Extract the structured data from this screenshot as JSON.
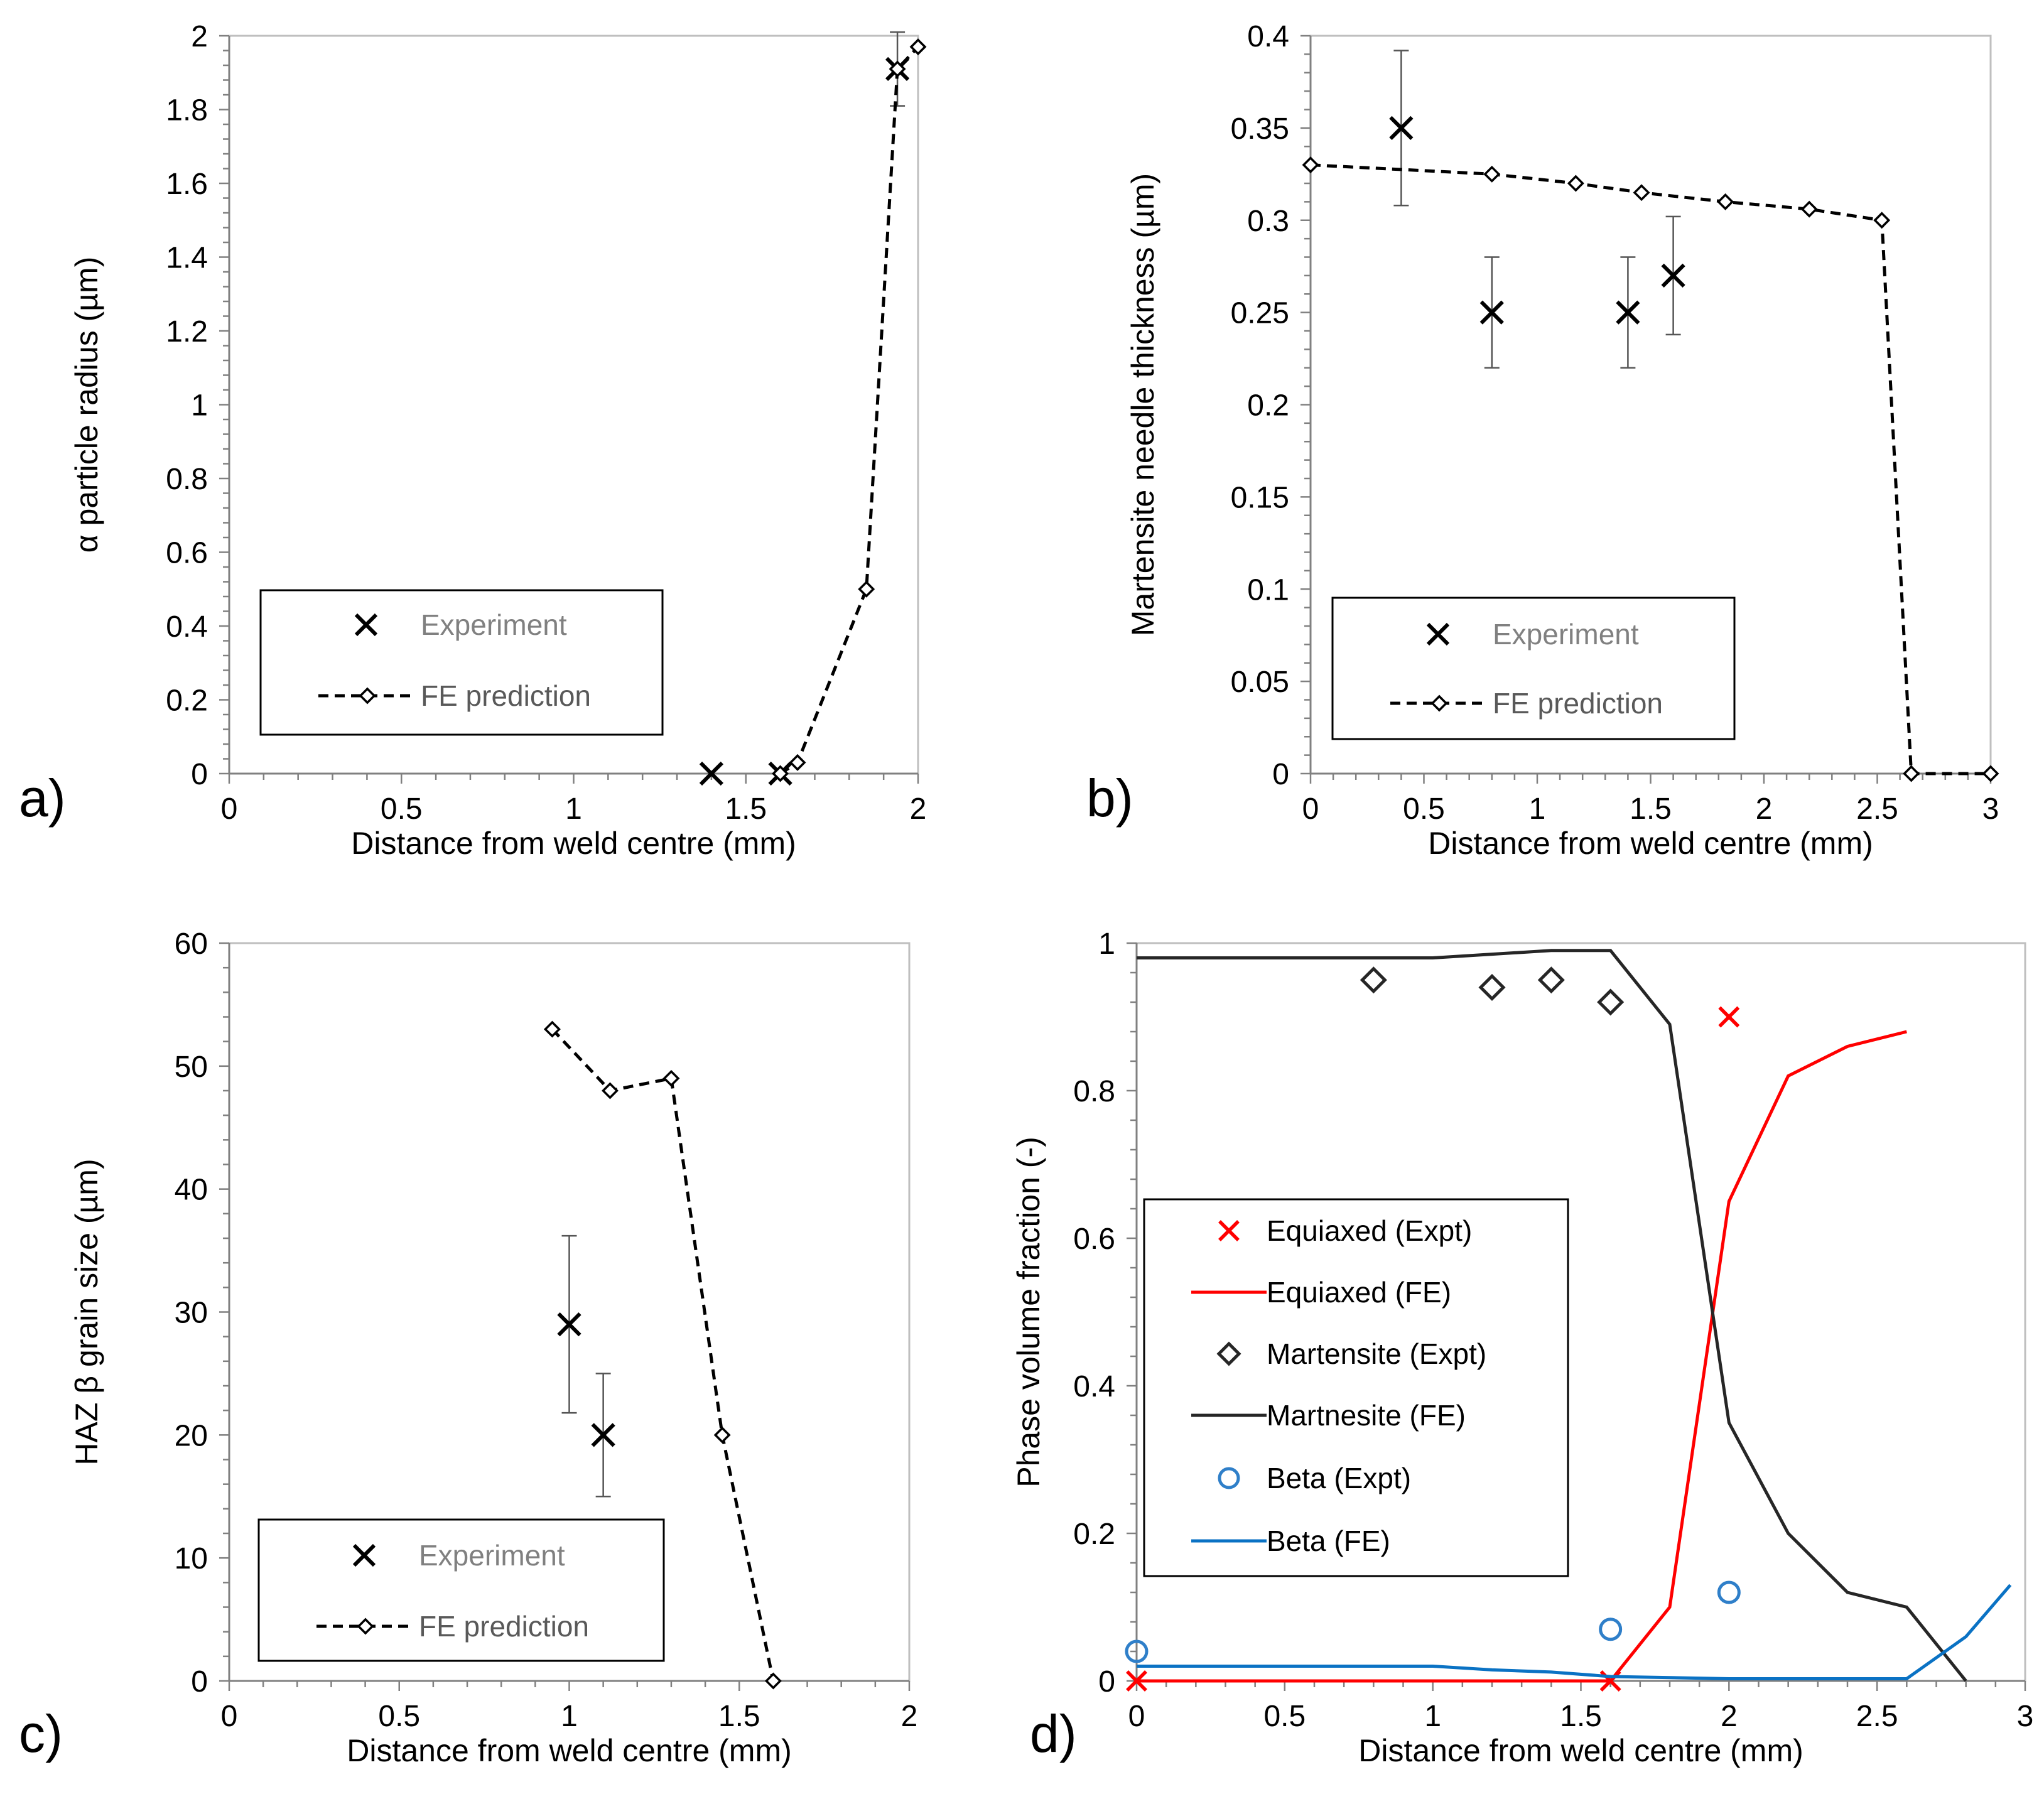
{
  "chart_data": [
    {
      "id": "a",
      "panel_label": "a)",
      "type": "scatter",
      "xlabel": "Distance from weld centre (mm)",
      "ylabel": "α particle radius (µm)",
      "xlim": [
        0,
        2
      ],
      "ylim": [
        0,
        2
      ],
      "xticks": [
        "0",
        "0.5",
        "1",
        "1.5",
        "2"
      ],
      "yticks": [
        "0",
        "0.2",
        "0.4",
        "0.6",
        "0.8",
        "1",
        "1.2",
        "1.4",
        "1.6",
        "1.8",
        "2"
      ],
      "legend_position": "bottom-left",
      "series": [
        {
          "name": "Experiment",
          "style": "x-marker",
          "color": "#000000",
          "x": [
            1.4,
            1.6,
            1.94
          ],
          "y": [
            0,
            0,
            1.91
          ],
          "err": [
            null,
            null,
            0.1
          ]
        },
        {
          "name": "FE prediction",
          "style": "dashed-diamond",
          "color": "#000000",
          "x": [
            1.6,
            1.65,
            1.85,
            1.94,
            2.0
          ],
          "y": [
            0,
            0.03,
            0.5,
            1.91,
            1.97
          ]
        }
      ]
    },
    {
      "id": "b",
      "panel_label": "b)",
      "type": "scatter",
      "xlabel": "Distance from weld centre (mm)",
      "ylabel": "Martensite needle thickness (µm)",
      "xlim": [
        0,
        3
      ],
      "ylim": [
        0,
        0.4
      ],
      "xticks": [
        "0",
        "0.5",
        "1",
        "1.5",
        "2",
        "2.5",
        "3"
      ],
      "yticks": [
        "0",
        "0.05",
        "0.1",
        "0.15",
        "0.2",
        "0.25",
        "0.3",
        "0.35",
        "0.4"
      ],
      "legend_position": "bottom-left",
      "series": [
        {
          "name": "Experiment",
          "style": "x-marker",
          "color": "#000000",
          "x": [
            0.4,
            0.8,
            1.4,
            1.6
          ],
          "y": [
            0.35,
            0.25,
            0.25,
            0.27
          ],
          "err": [
            0.042,
            0.03,
            0.03,
            0.032
          ]
        },
        {
          "name": "FE prediction",
          "style": "dashed-diamond",
          "color": "#000000",
          "x": [
            0,
            0.8,
            1.17,
            1.46,
            1.83,
            2.2,
            2.52,
            2.65,
            3.0
          ],
          "y": [
            0.33,
            0.325,
            0.32,
            0.315,
            0.31,
            0.306,
            0.3,
            0,
            0
          ]
        }
      ]
    },
    {
      "id": "c",
      "panel_label": "c)",
      "type": "scatter",
      "xlabel": "Distance from weld centre (mm)",
      "ylabel": "HAZ β grain size (µm)",
      "xlim": [
        0,
        2
      ],
      "ylim": [
        0,
        60
      ],
      "xticks": [
        "0",
        "0.5",
        "1",
        "1.5",
        "2"
      ],
      "yticks": [
        "0",
        "10",
        "20",
        "30",
        "40",
        "50",
        "60"
      ],
      "legend_position": "bottom-left",
      "series": [
        {
          "name": "Experiment",
          "style": "x-marker",
          "color": "#000000",
          "x": [
            1.0,
            1.1
          ],
          "y": [
            29,
            20
          ],
          "err": [
            7.2,
            5.0
          ]
        },
        {
          "name": "FE prediction",
          "style": "dashed-diamond",
          "color": "#000000",
          "x": [
            0.95,
            1.12,
            1.3,
            1.45,
            1.6
          ],
          "y": [
            53,
            48,
            49,
            20,
            0
          ]
        }
      ]
    },
    {
      "id": "d",
      "panel_label": "d)",
      "type": "line",
      "xlabel": "Distance from weld centre (mm)",
      "ylabel": "Phase volume fraction (-)",
      "xlim": [
        0,
        3
      ],
      "ylim": [
        0,
        1
      ],
      "xticks": [
        "0",
        "0.5",
        "1",
        "1.5",
        "2",
        "2.5",
        "3"
      ],
      "yticks": [
        "0",
        "0.2",
        "0.4",
        "0.6",
        "0.8",
        "1"
      ],
      "legend_position": "middle-left",
      "series": [
        {
          "name": "Equiaxed (Expt)",
          "style": "red-x",
          "color": "#ff0000",
          "x": [
            0,
            1.6,
            2.0
          ],
          "y": [
            0,
            0,
            0.9
          ]
        },
        {
          "name": "Equiaxed (FE)",
          "style": "line",
          "color": "#ff0000",
          "x": [
            0,
            1.6,
            1.8,
            2.0,
            2.2,
            2.4,
            2.6
          ],
          "y": [
            0,
            0,
            0.1,
            0.65,
            0.82,
            0.86,
            0.88
          ]
        },
        {
          "name": "Martensite (Expt)",
          "style": "diamond-open",
          "color": "#262626",
          "x": [
            0.8,
            1.2,
            1.4,
            1.6
          ],
          "y": [
            0.95,
            0.94,
            0.95,
            0.92
          ]
        },
        {
          "name": "Martnesite (FE)",
          "style": "line",
          "color": "#262626",
          "x": [
            0,
            1.0,
            1.2,
            1.4,
            1.6,
            1.8,
            2.0,
            2.2,
            2.4,
            2.6,
            2.8
          ],
          "y": [
            0.98,
            0.98,
            0.985,
            0.99,
            0.99,
            0.89,
            0.35,
            0.2,
            0.12,
            0.1,
            0
          ]
        },
        {
          "name": "Beta (Expt)",
          "style": "circle-open",
          "color": "#2f7fc9",
          "x": [
            0,
            1.6,
            2.0
          ],
          "y": [
            0.04,
            0.07,
            0.12
          ]
        },
        {
          "name": "Beta (FE)",
          "style": "line",
          "color": "#0a72c4",
          "x": [
            0,
            1.0,
            1.2,
            1.4,
            1.6,
            2.0,
            2.6,
            2.8,
            2.95
          ],
          "y": [
            0.02,
            0.02,
            0.015,
            0.012,
            0.006,
            0.003,
            0.003,
            0.06,
            0.13
          ]
        }
      ]
    }
  ]
}
